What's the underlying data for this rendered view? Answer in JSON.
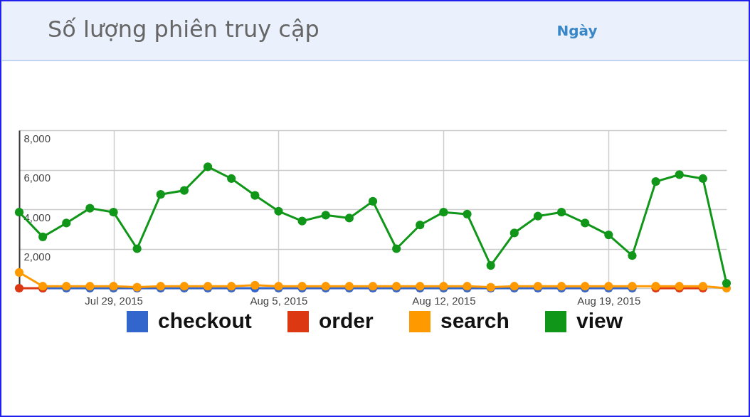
{
  "chart_data": {
    "type": "line",
    "title": "Số lượng phiên truy cập",
    "annotations": [
      "Ngày"
    ],
    "x": [
      "2015-07-25",
      "2015-07-26",
      "2015-07-27",
      "2015-07-28",
      "2015-07-29",
      "2015-07-30",
      "2015-07-31",
      "2015-08-01",
      "2015-08-02",
      "2015-08-03",
      "2015-08-04",
      "2015-08-05",
      "2015-08-06",
      "2015-08-07",
      "2015-08-08",
      "2015-08-09",
      "2015-08-10",
      "2015-08-11",
      "2015-08-12",
      "2015-08-13",
      "2015-08-14",
      "2015-08-15",
      "2015-08-16",
      "2015-08-17",
      "2015-08-18",
      "2015-08-19",
      "2015-08-20",
      "2015-08-21",
      "2015-08-22",
      "2015-08-23",
      "2015-08-24"
    ],
    "series": [
      {
        "name": "checkout",
        "color": "#3366cc",
        "values": [
          null,
          0,
          0,
          0,
          0,
          0,
          0,
          0,
          0,
          0,
          0,
          0,
          0,
          0,
          0,
          0,
          0,
          0,
          0,
          0,
          0,
          0,
          0,
          0,
          0,
          0,
          0,
          null,
          null,
          null,
          null
        ]
      },
      {
        "name": "order",
        "color": "#dc3912",
        "values": [
          0,
          0,
          null,
          null,
          null,
          null,
          null,
          null,
          null,
          null,
          null,
          null,
          null,
          null,
          null,
          null,
          null,
          null,
          null,
          null,
          null,
          null,
          null,
          null,
          null,
          null,
          null,
          0,
          0,
          0,
          null
        ]
      },
      {
        "name": "search",
        "color": "#ff9900",
        "values": [
          800,
          100,
          100,
          100,
          100,
          50,
          100,
          100,
          100,
          100,
          150,
          100,
          100,
          100,
          100,
          100,
          100,
          100,
          100,
          100,
          50,
          100,
          100,
          100,
          100,
          100,
          100,
          100,
          100,
          100,
          0
        ]
      },
      {
        "name": "view",
        "color": "#109618",
        "values": [
          3850,
          2600,
          3300,
          4050,
          3850,
          2000,
          4750,
          4950,
          6150,
          5550,
          4700,
          3900,
          3400,
          3700,
          3550,
          4400,
          2000,
          3200,
          3850,
          3750,
          1150,
          2800,
          3650,
          3850,
          3300,
          2700,
          1650,
          5400,
          5750,
          5550,
          250
        ]
      }
    ],
    "xlim": [
      "2015-07-25",
      "2015-08-24"
    ],
    "xticks": [
      {
        "value": "2015-07-29",
        "label": "Jul 29, 2015"
      },
      {
        "value": "2015-08-05",
        "label": "Aug 5, 2015"
      },
      {
        "value": "2015-08-12",
        "label": "Aug 12, 2015"
      },
      {
        "value": "2015-08-19",
        "label": "Aug 19, 2015"
      }
    ],
    "ylim": [
      0,
      8000
    ],
    "yticks": [
      {
        "value": 0,
        "label": null
      },
      {
        "value": 2000,
        "label": "2,000"
      },
      {
        "value": 4000,
        "label": "4,000"
      },
      {
        "value": 6000,
        "label": "6,000"
      },
      {
        "value": 8000,
        "label": "8,000"
      }
    ],
    "grid": true,
    "legend": "bottom",
    "marker": "circle",
    "line_style": "solid"
  }
}
